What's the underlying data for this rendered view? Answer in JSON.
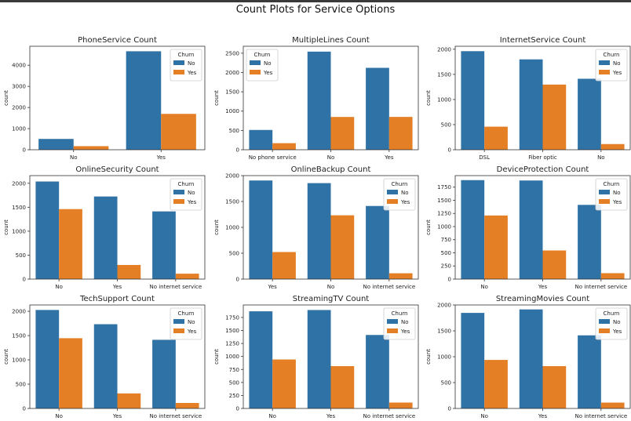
{
  "figure": {
    "title": "Count Plots for Service Options"
  },
  "colors": {
    "No": "#2f72a6",
    "Yes": "#e47f26",
    "axis": "#333333"
  },
  "chart_data": [
    {
      "type": "bar",
      "title": "PhoneService Count",
      "xlabel": "",
      "ylabel": "count",
      "categories": [
        "No",
        "Yes"
      ],
      "ylim": [
        0,
        4900
      ],
      "yticks": [
        0,
        1000,
        2000,
        3000,
        4000
      ],
      "legend": {
        "title": "Churn",
        "entries": [
          "No",
          "Yes"
        ],
        "placement": "upper-right"
      },
      "series": [
        {
          "name": "No",
          "values": [
            512,
            4662
          ]
        },
        {
          "name": "Yes",
          "values": [
            170,
            1699
          ]
        }
      ]
    },
    {
      "type": "bar",
      "title": "MultipleLines Count",
      "xlabel": "",
      "ylabel": "count",
      "categories": [
        "No phone service",
        "No",
        "Yes"
      ],
      "ylim": [
        0,
        2680
      ],
      "yticks": [
        0,
        500,
        1000,
        1500,
        2000,
        2500
      ],
      "legend": {
        "title": "Churn",
        "entries": [
          "No",
          "Yes"
        ],
        "placement": "upper-left"
      },
      "series": [
        {
          "name": "No",
          "values": [
            512,
            2541,
            2121
          ]
        },
        {
          "name": "Yes",
          "values": [
            170,
            849,
            850
          ]
        }
      ]
    },
    {
      "type": "bar",
      "title": "InternetService Count",
      "xlabel": "",
      "ylabel": "count",
      "categories": [
        "DSL",
        "Fiber optic",
        "No"
      ],
      "ylim": [
        0,
        2060
      ],
      "yticks": [
        0,
        500,
        1000,
        1500,
        2000
      ],
      "legend": {
        "title": "Churn",
        "entries": [
          "No",
          "Yes"
        ],
        "placement": "upper-right"
      },
      "series": [
        {
          "name": "No",
          "values": [
            1962,
            1799,
            1413
          ]
        },
        {
          "name": "Yes",
          "values": [
            459,
            1297,
            113
          ]
        }
      ]
    },
    {
      "type": "bar",
      "title": "OnlineSecurity Count",
      "xlabel": "",
      "ylabel": "count",
      "categories": [
        "No",
        "Yes",
        "No internet service"
      ],
      "ylim": [
        0,
        2160
      ],
      "yticks": [
        0,
        500,
        1000,
        1500,
        2000
      ],
      "legend": {
        "title": "Churn",
        "entries": [
          "No",
          "Yes"
        ],
        "placement": "upper-right"
      },
      "series": [
        {
          "name": "No",
          "values": [
            2037,
            1724,
            1413
          ]
        },
        {
          "name": "Yes",
          "values": [
            1461,
            295,
            113
          ]
        }
      ]
    },
    {
      "type": "bar",
      "title": "OnlineBackup Count",
      "xlabel": "",
      "ylabel": "count",
      "categories": [
        "Yes",
        "No",
        "No internet service"
      ],
      "ylim": [
        0,
        2000
      ],
      "yticks": [
        0,
        500,
        1000,
        1500,
        2000
      ],
      "legend": {
        "title": "Churn",
        "entries": [
          "No",
          "Yes"
        ],
        "placement": "upper-right"
      },
      "series": [
        {
          "name": "No",
          "values": [
            1906,
            1855,
            1413
          ]
        },
        {
          "name": "Yes",
          "values": [
            523,
            1233,
            113
          ]
        }
      ]
    },
    {
      "type": "bar",
      "title": "DeviceProtection Count",
      "xlabel": "",
      "ylabel": "count",
      "categories": [
        "No",
        "Yes",
        "No internet service"
      ],
      "ylim": [
        0,
        1970
      ],
      "yticks": [
        0,
        250,
        500,
        750,
        1000,
        1250,
        1500,
        1750
      ],
      "legend": {
        "title": "Churn",
        "entries": [
          "No",
          "Yes"
        ],
        "placement": "upper-right"
      },
      "series": [
        {
          "name": "No",
          "values": [
            1884,
            1877,
            1413
          ]
        },
        {
          "name": "Yes",
          "values": [
            1211,
            545,
            113
          ]
        }
      ]
    },
    {
      "type": "bar",
      "title": "TechSupport Count",
      "xlabel": "",
      "ylabel": "count",
      "categories": [
        "No",
        "Yes",
        "No internet service"
      ],
      "ylim": [
        0,
        2130
      ],
      "yticks": [
        0,
        500,
        1000,
        1500,
        2000
      ],
      "legend": {
        "title": "Churn",
        "entries": [
          "No",
          "Yes"
        ],
        "placement": "upper-right"
      },
      "series": [
        {
          "name": "No",
          "values": [
            2027,
            1734,
            1413
          ]
        },
        {
          "name": "Yes",
          "values": [
            1446,
            310,
            113
          ]
        }
      ]
    },
    {
      "type": "bar",
      "title": "StreamingTV Count",
      "xlabel": "",
      "ylabel": "count",
      "categories": [
        "No",
        "Yes",
        "No internet service"
      ],
      "ylim": [
        0,
        1990
      ],
      "yticks": [
        0,
        250,
        500,
        750,
        1000,
        1250,
        1500,
        1750
      ],
      "legend": {
        "title": "Churn",
        "entries": [
          "No",
          "Yes"
        ],
        "placement": "upper-right"
      },
      "series": [
        {
          "name": "No",
          "values": [
            1868,
            1893,
            1413
          ]
        },
        {
          "name": "Yes",
          "values": [
            942,
            814,
            113
          ]
        }
      ]
    },
    {
      "type": "bar",
      "title": "StreamingMovies Count",
      "xlabel": "",
      "ylabel": "count",
      "categories": [
        "No",
        "Yes",
        "No internet service"
      ],
      "ylim": [
        0,
        2000
      ],
      "yticks": [
        0,
        500,
        1000,
        1500,
        2000
      ],
      "legend": {
        "title": "Churn",
        "entries": [
          "No",
          "Yes"
        ],
        "placement": "upper-right"
      },
      "series": [
        {
          "name": "No",
          "values": [
            1847,
            1914,
            1413
          ]
        },
        {
          "name": "Yes",
          "values": [
            938,
            818,
            113
          ]
        }
      ]
    }
  ]
}
